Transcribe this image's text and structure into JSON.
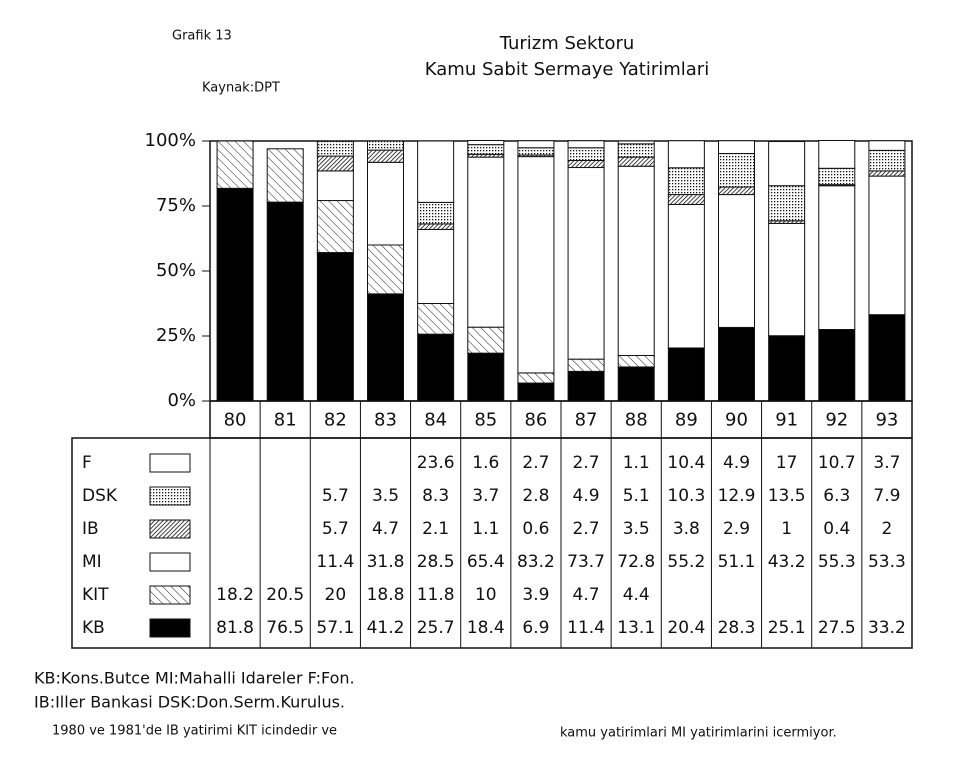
{
  "chart_data": {
    "type": "stacked-bar",
    "label": "Grafik 13",
    "title": "Turizm Sektoru",
    "subtitle": "Kamu Sabit Sermaye Yatirimlari",
    "source": "Kaynak:DPT",
    "categories": [
      "80",
      "81",
      "82",
      "83",
      "84",
      "85",
      "86",
      "87",
      "88",
      "89",
      "90",
      "91",
      "92",
      "93"
    ],
    "series": [
      {
        "name": "KB",
        "color": "#000000",
        "pattern": null,
        "values": [
          81.8,
          76.5,
          57.1,
          41.2,
          25.7,
          18.4,
          6.9,
          11.4,
          13.1,
          20.4,
          28.3,
          25.1,
          27.5,
          33.2
        ]
      },
      {
        "name": "KIT",
        "color": "#ffffff",
        "pattern": "diagonal",
        "values": [
          18.2,
          20.5,
          20,
          18.8,
          11.8,
          10,
          3.9,
          4.7,
          4.4,
          null,
          null,
          null,
          null,
          null
        ]
      },
      {
        "name": "MI",
        "color": "#ffffff",
        "pattern": null,
        "values": [
          null,
          null,
          11.4,
          31.8,
          28.5,
          65.4,
          83.2,
          73.7,
          72.8,
          55.2,
          51.1,
          43.2,
          55.3,
          53.3
        ]
      },
      {
        "name": "IB",
        "color": "#ffffff",
        "pattern": "dense-diagonal",
        "values": [
          null,
          null,
          5.7,
          4.7,
          2.1,
          1.1,
          0.6,
          2.7,
          3.5,
          3.8,
          2.9,
          1,
          0.4,
          2
        ]
      },
      {
        "name": "DSK",
        "color": "#ffffff",
        "pattern": "dots",
        "values": [
          null,
          null,
          5.7,
          3.5,
          8.3,
          3.7,
          2.8,
          4.9,
          5.1,
          10.3,
          12.9,
          13.5,
          6.3,
          7.9
        ]
      },
      {
        "name": "F",
        "color": "#ffffff",
        "pattern": null,
        "values": [
          null,
          null,
          null,
          null,
          23.6,
          1.6,
          2.7,
          2.7,
          1.1,
          10.4,
          4.9,
          17,
          10.7,
          3.7
        ]
      }
    ],
    "ylim": [
      0,
      100
    ],
    "yticks": [
      {
        "value": 0,
        "label": "0%"
      },
      {
        "value": 25,
        "label": "25%"
      },
      {
        "value": 50,
        "label": "50%"
      },
      {
        "value": 75,
        "label": "75%"
      },
      {
        "value": 100,
        "label": "100%"
      }
    ],
    "notes": [
      "KB:Kons.Butce MI:Mahalli Idareler F:Fon.",
      "IB:Iller Bankasi DSK:Don.Serm.Kurulus.",
      "1980 ve 1981'de IB yatirimi KIT icindedir ve",
      "kamu yatirimlari MI yatirimlarini icermiyor."
    ]
  }
}
